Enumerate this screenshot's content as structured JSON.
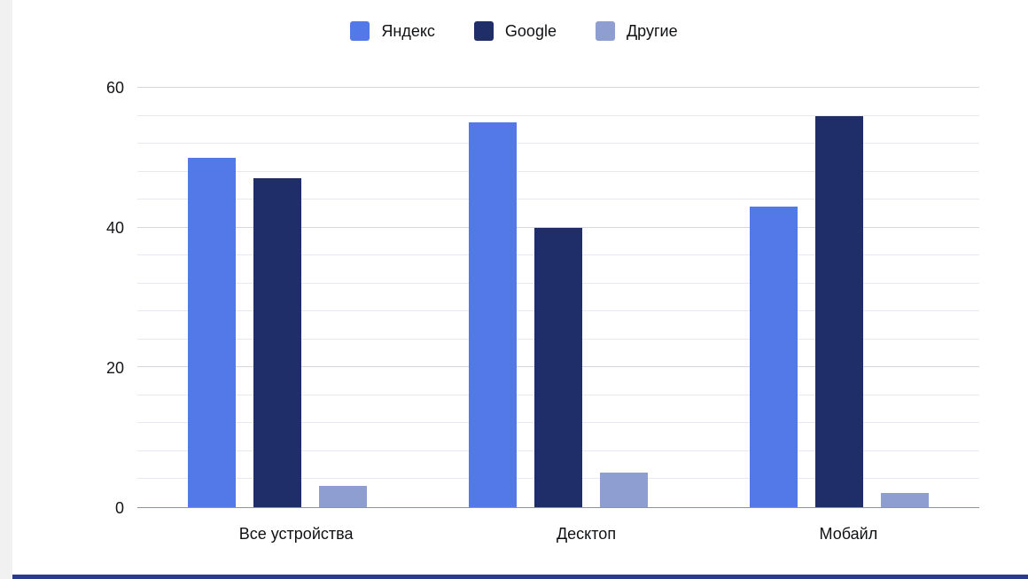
{
  "page": {
    "background": "#ffffff",
    "left_strip_color": "#f1f1f2",
    "bottom_bar_color": "#2a3b8f"
  },
  "chart_data": {
    "type": "bar",
    "title": "",
    "xlabel": "",
    "ylabel": "",
    "categories": [
      "Все устройства",
      "Десктоп",
      "Мобайл"
    ],
    "series": [
      {
        "name": "Яндекс",
        "color": "#5378e8",
        "values": [
          50,
          55,
          43
        ]
      },
      {
        "name": "Google",
        "color": "#1f2d69",
        "values": [
          47,
          40,
          56
        ]
      },
      {
        "name": "Другие",
        "color": "#8e9ed1",
        "values": [
          3,
          5,
          2
        ]
      }
    ],
    "ylim": [
      0,
      60
    ],
    "yticks": [
      0,
      20,
      40,
      60
    ],
    "minor_grid_step": 4,
    "grid": true,
    "legend_position": "top-center"
  }
}
